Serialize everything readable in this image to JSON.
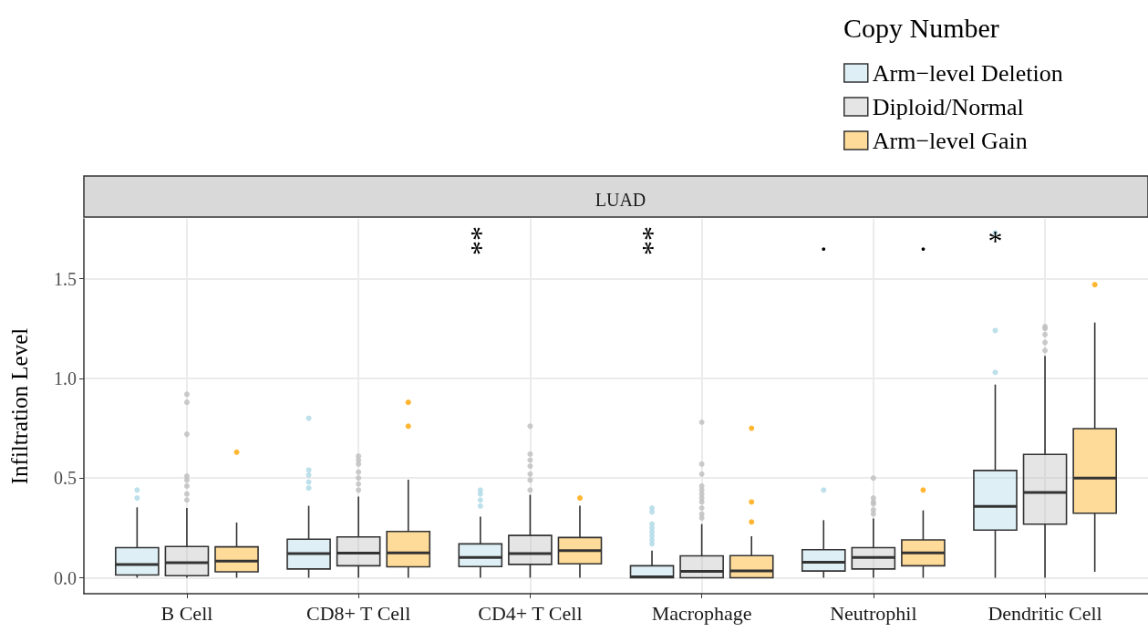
{
  "chart_data": {
    "type": "box",
    "title": "LUAD",
    "ylabel": "Infiltration Level",
    "legend_title": "Copy Number",
    "categories": [
      "B Cell",
      "CD8+ T Cell",
      "CD4+ T Cell",
      "Macrophage",
      "Neutrophil",
      "Dendritic Cell"
    ],
    "series": [
      {
        "name": "Arm−level Deletion",
        "color": "#add8e6",
        "boxes": [
          {
            "low": 0,
            "q1": 0.014,
            "median": 0.066,
            "q3": 0.151,
            "high": 0.353,
            "outliers": [
              0.44,
              0.4
            ]
          },
          {
            "low": 0,
            "q1": 0.044,
            "median": 0.121,
            "q3": 0.193,
            "high": 0.361,
            "outliers": [
              0.8,
              0.54,
              0.515,
              0.48,
              0.45
            ]
          },
          {
            "low": 0,
            "q1": 0.056,
            "median": 0.102,
            "q3": 0.17,
            "high": 0.307,
            "outliers": [
              0.44,
              0.42,
              0.39,
              0.36
            ]
          },
          {
            "low": 0,
            "q1": 0,
            "median": 0.005,
            "q3": 0.06,
            "high": 0.136,
            "outliers": [
              0.35,
              0.33,
              0.27,
              0.25,
              0.23,
              0.21,
              0.19,
              0.17
            ]
          },
          {
            "low": 0,
            "q1": 0.034,
            "median": 0.078,
            "q3": 0.141,
            "high": 0.289,
            "outliers": [
              0.44
            ]
          },
          {
            "low": 0,
            "q1": 0.239,
            "median": 0.358,
            "q3": 0.538,
            "high": 0.969,
            "outliers": [
              1.73,
              1.24,
              1.03
            ]
          }
        ]
      },
      {
        "name": "Diploid/Normal",
        "color": "#bebebe",
        "boxes": [
          {
            "low": 0,
            "q1": 0.01,
            "median": 0.075,
            "q3": 0.157,
            "high": 0.35,
            "outliers": [
              0.92,
              0.88,
              0.72,
              0.51,
              0.49,
              0.46,
              0.42,
              0.39
            ]
          },
          {
            "low": 0,
            "q1": 0.06,
            "median": 0.124,
            "q3": 0.205,
            "high": 0.407,
            "outliers": [
              0.61,
              0.59,
              0.57,
              0.53,
              0.5,
              0.47,
              0.44
            ]
          },
          {
            "low": 0,
            "q1": 0.067,
            "median": 0.121,
            "q3": 0.212,
            "high": 0.416,
            "outliers": [
              0.76,
              0.62,
              0.59,
              0.56,
              0.52,
              0.49,
              0.44
            ]
          },
          {
            "low": 0,
            "q1": 0,
            "median": 0.032,
            "q3": 0.11,
            "high": 0.269,
            "outliers": [
              0.78,
              0.57,
              0.52,
              0.46,
              0.44,
              0.42,
              0.4,
              0.38,
              0.35,
              0.32,
              0.3
            ]
          },
          {
            "low": 0,
            "q1": 0.044,
            "median": 0.102,
            "q3": 0.151,
            "high": 0.297,
            "outliers": [
              0.5,
              0.4,
              0.38,
              0.37,
              0.34,
              0.32
            ]
          },
          {
            "low": 0,
            "q1": 0.269,
            "median": 0.428,
            "q3": 0.619,
            "high": 1.113,
            "outliers": [
              1.26,
              1.25,
              1.22,
              1.18,
              1.14
            ]
          }
        ]
      },
      {
        "name": "Arm−level Gain",
        "color": "#ffa500",
        "boxes": [
          {
            "low": 0,
            "q1": 0.03,
            "median": 0.083,
            "q3": 0.155,
            "high": 0.277,
            "outliers": [
              0.63
            ]
          },
          {
            "low": 0,
            "q1": 0.055,
            "median": 0.125,
            "q3": 0.232,
            "high": 0.492,
            "outliers": [
              0.88,
              0.76
            ]
          },
          {
            "low": 0,
            "q1": 0.07,
            "median": 0.136,
            "q3": 0.202,
            "high": 0.361,
            "outliers": [
              0.4
            ]
          },
          {
            "low": 0,
            "q1": 0,
            "median": 0.034,
            "q3": 0.111,
            "high": 0.208,
            "outliers": [
              0.75,
              0.38,
              0.28
            ]
          },
          {
            "low": 0,
            "q1": 0.06,
            "median": 0.125,
            "q3": 0.19,
            "high": 0.338,
            "outliers": [
              0.44
            ]
          },
          {
            "low": 0.03,
            "q1": 0.324,
            "median": 0.5,
            "q3": 0.748,
            "high": 1.28,
            "outliers": [
              1.47
            ]
          }
        ]
      }
    ],
    "ylim": [
      -0.08,
      1.8
    ],
    "yticks": [
      {
        "value": 0,
        "label": "0.0"
      },
      {
        "value": 0.5,
        "label": "0.5"
      },
      {
        "value": 1,
        "label": "1.0"
      },
      {
        "value": 1.5,
        "label": "1.5"
      }
    ],
    "grid": true,
    "legend": "top right",
    "annotations": [
      "**",
      "**",
      ".",
      ".",
      "*"
    ]
  }
}
